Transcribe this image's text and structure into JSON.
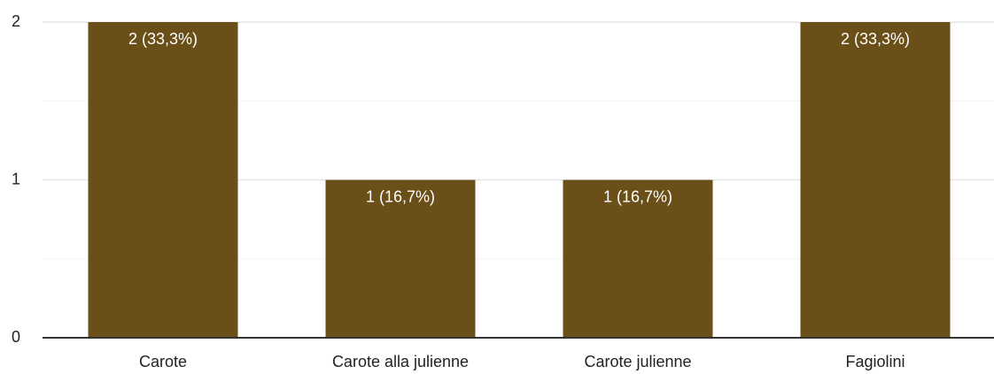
{
  "chart_data": {
    "type": "bar",
    "categories": [
      "Carote",
      "Carote alla julienne",
      "Carote julienne",
      "Fagiolini"
    ],
    "values": [
      2,
      1,
      1,
      2
    ],
    "value_labels": [
      "2 (33,3%)",
      "1 (16,7%)",
      "1 (16,7%)",
      "2 (33,3%)"
    ],
    "color": "#6b4f19",
    "ylim": [
      0,
      2
    ],
    "yticks": [
      0,
      1,
      2
    ],
    "minor_yticks": [
      0.5,
      1.5
    ],
    "grid": true
  }
}
